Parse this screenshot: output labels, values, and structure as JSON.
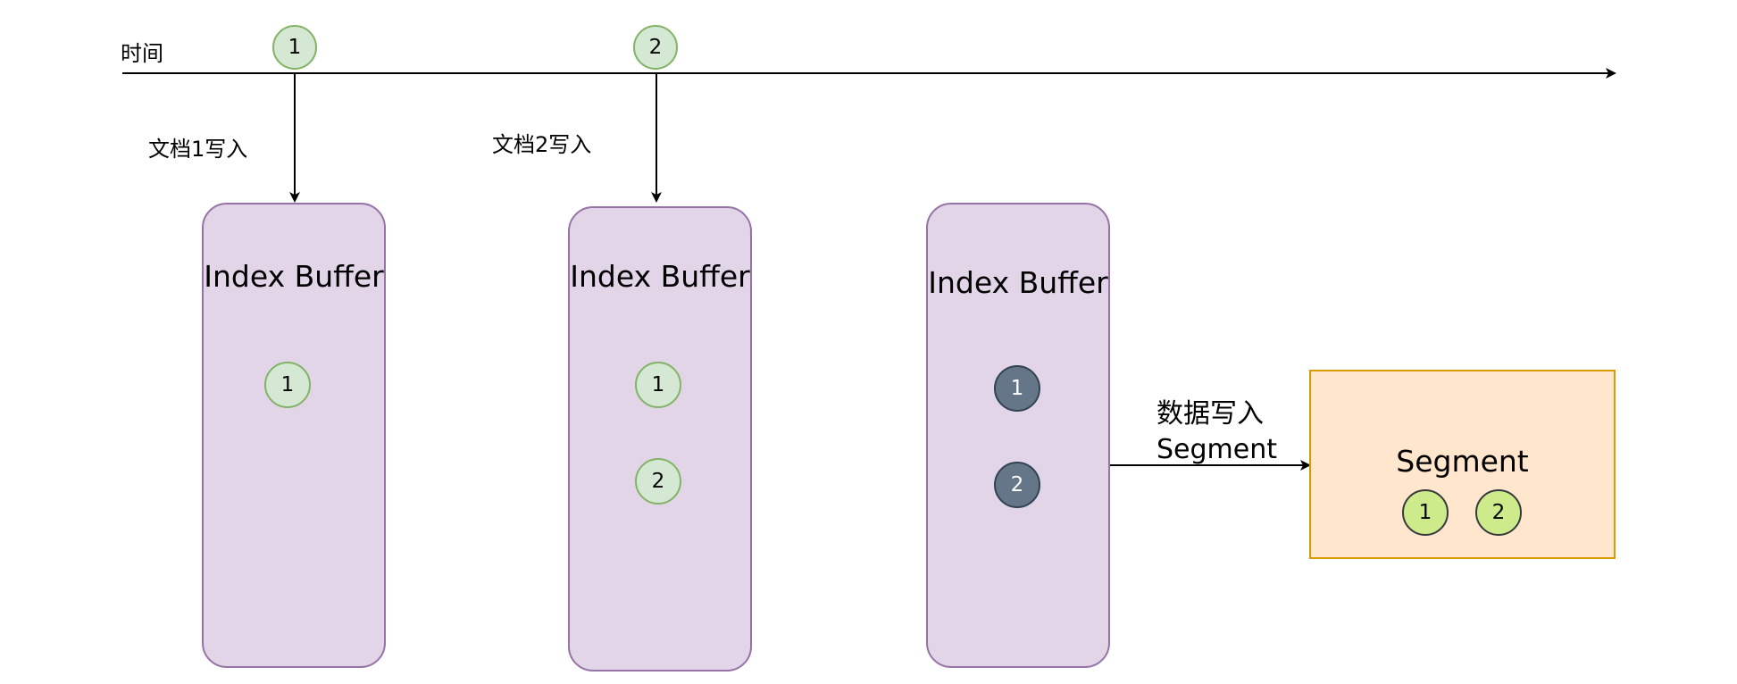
{
  "timeline": {
    "label": "时间",
    "events": [
      {
        "marker": "1",
        "caption": "文档1写入"
      },
      {
        "marker": "2",
        "caption": "文档2写入"
      }
    ]
  },
  "buffers": [
    {
      "title": "Index Buffer",
      "docs": [
        "1"
      ],
      "state": "buffered"
    },
    {
      "title": "Index Buffer",
      "docs": [
        "1",
        "2"
      ],
      "state": "buffered"
    },
    {
      "title": "Index Buffer",
      "docs": [
        "1",
        "2"
      ],
      "state": "flushed"
    }
  ],
  "flush": {
    "caption_line1": "数据写入",
    "caption_line2": "Segment"
  },
  "segment": {
    "title": "Segment",
    "docs": [
      "1",
      "2"
    ]
  },
  "colors": {
    "doc_fill": "#d5e8d4",
    "doc_stroke": "#82b366",
    "flushed_fill": "#647687",
    "flushed_stroke": "#314354",
    "segment_doc_fill": "#cdeb8b",
    "segment_doc_stroke": "#36393d",
    "buffer_fill": "#e1d5e7",
    "buffer_stroke": "#9673a6",
    "segment_fill": "#ffe6cc",
    "segment_stroke": "#d79b00",
    "line": "#000000"
  }
}
